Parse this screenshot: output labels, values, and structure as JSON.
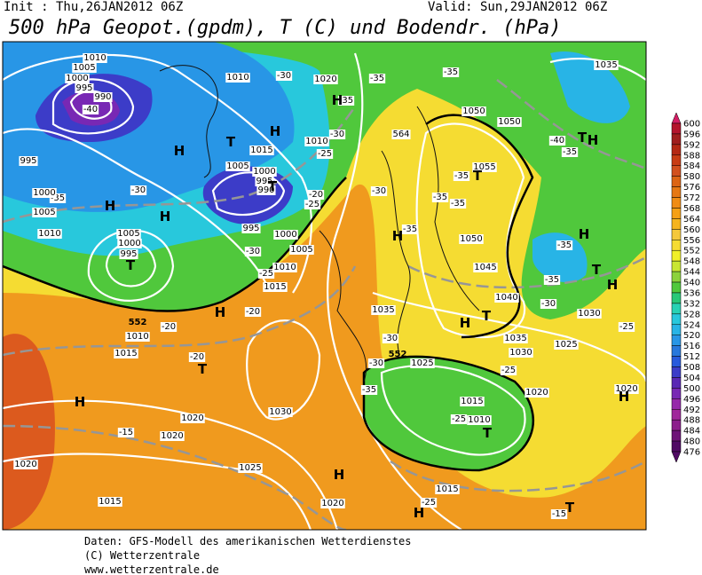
{
  "header": {
    "init": "Init : Thu,26JAN2012 06Z",
    "valid": "Valid: Sun,29JAN2012 06Z",
    "title": "500 hPa Geopot.(gpdm), T (C) und Bodendr. (hPa)"
  },
  "colorbar": {
    "levels": [
      600,
      596,
      592,
      588,
      584,
      580,
      576,
      572,
      568,
      564,
      560,
      556,
      552,
      548,
      544,
      540,
      536,
      532,
      528,
      524,
      520,
      516,
      512,
      508,
      504,
      500,
      496,
      492,
      488,
      484,
      480,
      476
    ],
    "colors": [
      "#d41e64",
      "#b4142d",
      "#a01e1e",
      "#b42814",
      "#c83c14",
      "#d2501e",
      "#dc6414",
      "#e67814",
      "#f08c14",
      "#f5a014",
      "#f5b41e",
      "#f5c83c",
      "#f5dc32",
      "#f0f028",
      "#c8e632",
      "#8cd23c",
      "#50c83c",
      "#28c878",
      "#28d2b4",
      "#28c8dc",
      "#28b4e6",
      "#2896e6",
      "#2878dc",
      "#285adc",
      "#3c3cc8",
      "#5a28b4",
      "#7828b4",
      "#9628aa",
      "#a0289b",
      "#8c1e8c",
      "#6e1478",
      "#500a64"
    ]
  },
  "map_labels": [
    "1010",
    "1005",
    "1000",
    "995",
    "990",
    "-40",
    "1010",
    "-30",
    "1020",
    "-35",
    "-35",
    "1035",
    "-35",
    "1050",
    "1050",
    "-40",
    "-35",
    "1015",
    "1010",
    "-30",
    "-25",
    "995",
    "1005",
    "1000",
    "995",
    "990",
    "-30",
    "-35",
    "1000",
    "1005",
    "1010",
    "1005",
    "1000",
    "995",
    "-20",
    "-25",
    "1055",
    "-35",
    "-35",
    "-35",
    "-30",
    "995",
    "1000",
    "1005",
    "-30",
    "1010",
    "-25",
    "1015",
    "-35",
    "1050",
    "-35",
    "1045",
    "-35",
    "1040",
    "-30",
    "1030",
    "1035",
    "-20",
    "-20",
    "1010",
    "1015",
    "-25",
    "-30",
    "1035",
    "1025",
    "1030",
    "-20",
    "-30",
    "1025",
    "-25",
    "1020",
    "1020",
    "-35",
    "1015",
    "-25",
    "1010",
    "1030",
    "1020",
    "-15",
    "1020",
    "1025",
    "1020",
    "1015",
    "1020",
    "1015",
    "-25",
    "-15",
    "564",
    "552",
    "552"
  ],
  "pressure_centers": [
    "H",
    "T",
    "H",
    "H",
    "T",
    "H",
    "T",
    "H",
    "H",
    "T",
    "H",
    "H",
    "T",
    "H",
    "T",
    "H",
    "T",
    "H",
    "T",
    "H",
    "H",
    "T",
    "H",
    "H",
    "T"
  ],
  "footer": [
    "Daten: GFS-Modell des amerikanischen Wetterdienstes",
    "(C) Wetterzentrale",
    "www.wetterzentrale.de"
  ]
}
